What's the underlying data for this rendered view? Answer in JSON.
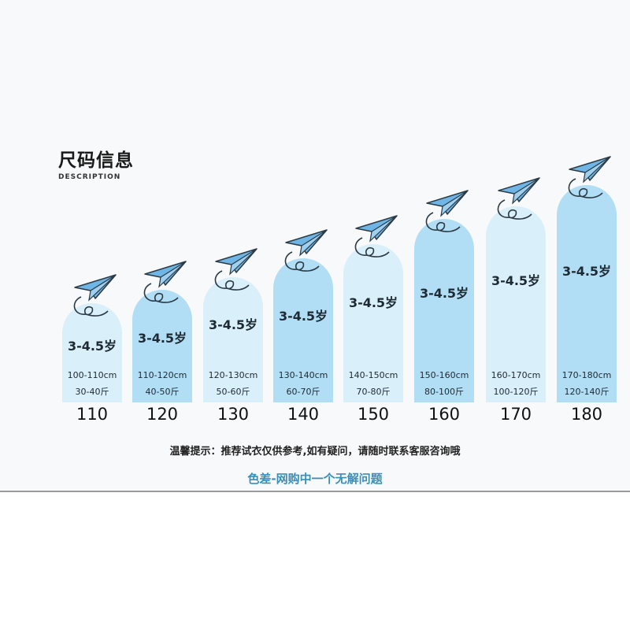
{
  "header": {
    "title": "尺码信息",
    "subtitle": "DESCRIPTION"
  },
  "colors": {
    "light": "#d9eff9",
    "dark": "#b1def5",
    "accent": "#3a8fb8",
    "plane": "#6fb6e6"
  },
  "sizes": [
    {
      "size": "110",
      "age": "3-4.5岁",
      "height": "100-110cm",
      "weight": "30-40斤",
      "shade": "light"
    },
    {
      "size": "120",
      "age": "3-4.5岁",
      "height": "110-120cm",
      "weight": "40-50斤",
      "shade": "dark"
    },
    {
      "size": "130",
      "age": "3-4.5岁",
      "height": "120-130cm",
      "weight": "50-60斤",
      "shade": "light"
    },
    {
      "size": "140",
      "age": "3-4.5岁",
      "height": "130-140cm",
      "weight": "60-70斤",
      "shade": "dark"
    },
    {
      "size": "150",
      "age": "3-4.5岁",
      "height": "140-150cm",
      "weight": "70-80斤",
      "shade": "light"
    },
    {
      "size": "160",
      "age": "3-4.5岁",
      "height": "150-160cm",
      "weight": "80-100斤",
      "shade": "dark"
    },
    {
      "size": "170",
      "age": "3-4.5岁",
      "height": "160-170cm",
      "weight": "100-120斤",
      "shade": "light"
    },
    {
      "size": "180",
      "age": "3-4.5岁",
      "height": "170-180cm",
      "weight": "120-140斤",
      "shade": "dark"
    }
  ],
  "footer": {
    "tip": "温馨提示：推荐试衣仅供参考,如有疑问，请随时联系客服咨询哦",
    "note": "色差-网购中一个无解问题"
  }
}
